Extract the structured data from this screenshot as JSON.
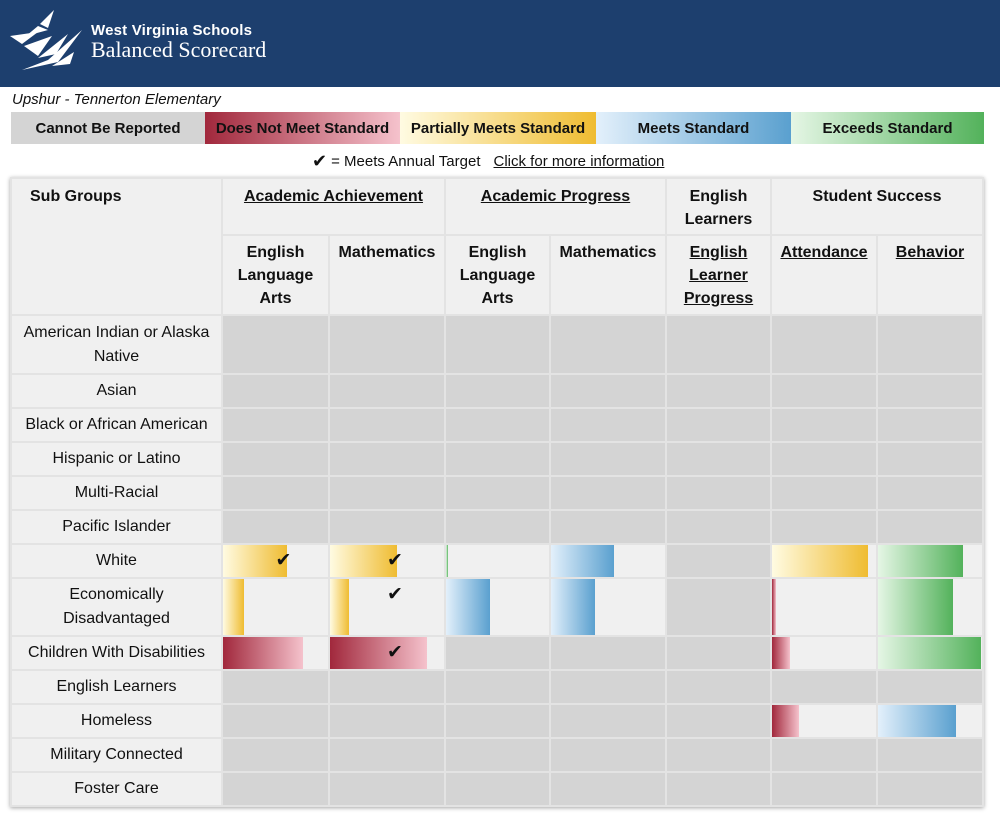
{
  "brand": {
    "line1": "West Virginia Schools",
    "line2": "Balanced Scorecard"
  },
  "school": "Upshur - Tennerton Elementary",
  "legend": [
    {
      "key": "nr",
      "label": "Cannot Be Reported"
    },
    {
      "key": "dn",
      "label": "Does Not Meet Standard"
    },
    {
      "key": "pm",
      "label": "Partially Meets Standard"
    },
    {
      "key": "ms",
      "label": "Meets Standard"
    },
    {
      "key": "es",
      "label": "Exceeds Standard"
    }
  ],
  "target": {
    "check": "✔",
    "label": "= Meets Annual Target",
    "link": "Click for more information"
  },
  "colors": {
    "header": "#1d3f6e",
    "not_reported": "#d4d4d4",
    "does_not_meet": "#a1283c",
    "partially_meets": "#efbc31",
    "meets": "#5aa0cf",
    "exceeds": "#53b25b"
  },
  "table": {
    "subgroups_header": "Sub Groups",
    "groups": [
      {
        "label": "Academic Achievement",
        "link": true
      },
      {
        "label": "Academic Progress",
        "link": true
      },
      {
        "label": "English Learners",
        "link": false
      },
      {
        "label": "Student Success",
        "link": false
      }
    ],
    "columns": [
      {
        "label": "English Language Arts",
        "link": false
      },
      {
        "label": "Mathematics",
        "link": false
      },
      {
        "label": "English Language Arts",
        "link": false
      },
      {
        "label": "Mathematics",
        "link": false
      },
      {
        "label": "English Learner Progress",
        "link": true
      },
      {
        "label": "Attendance",
        "link": true
      },
      {
        "label": "Behavior",
        "link": true
      }
    ],
    "rows": [
      {
        "label": "American Indian or Alaska Native",
        "cells": [
          null,
          null,
          null,
          null,
          null,
          null,
          null
        ]
      },
      {
        "label": "Asian",
        "cells": [
          null,
          null,
          null,
          null,
          null,
          null,
          null
        ]
      },
      {
        "label": "Black or African American",
        "cells": [
          null,
          null,
          null,
          null,
          null,
          null,
          null
        ]
      },
      {
        "label": "Hispanic or Latino",
        "cells": [
          null,
          null,
          null,
          null,
          null,
          null,
          null
        ]
      },
      {
        "label": "Multi-Racial",
        "cells": [
          null,
          null,
          null,
          null,
          null,
          null,
          null
        ]
      },
      {
        "label": "Pacific Islander",
        "cells": [
          null,
          null,
          null,
          null,
          null,
          null,
          null
        ]
      },
      {
        "label": "White",
        "cells": [
          {
            "status": "pm",
            "level": 0.61,
            "target": true
          },
          {
            "status": "pm",
            "level": 0.59,
            "target": true
          },
          {
            "status": "es",
            "level": 0.02,
            "target": false
          },
          {
            "status": "ms",
            "level": 0.55,
            "target": false
          },
          null,
          {
            "status": "pm",
            "level": 0.92,
            "target": false
          },
          {
            "status": "es",
            "level": 0.82,
            "target": false
          }
        ]
      },
      {
        "label": "Economically Disadvantaged",
        "cells": [
          {
            "status": "pm",
            "level": 0.2,
            "target": false
          },
          {
            "status": "pm",
            "level": 0.17,
            "target": true
          },
          {
            "status": "ms",
            "level": 0.43,
            "target": false
          },
          {
            "status": "ms",
            "level": 0.39,
            "target": false
          },
          null,
          {
            "status": "dn",
            "level": 0.04,
            "target": false
          },
          {
            "status": "es",
            "level": 0.72,
            "target": false
          }
        ]
      },
      {
        "label": "Children With Disabilities",
        "cells": [
          {
            "status": "dn",
            "level": 0.76,
            "target": false
          },
          {
            "status": "dn",
            "level": 0.85,
            "target": true
          },
          null,
          null,
          null,
          {
            "status": "dn",
            "level": 0.17,
            "target": false
          },
          {
            "status": "es",
            "level": 0.99,
            "target": false
          }
        ]
      },
      {
        "label": "English Learners",
        "cells": [
          null,
          null,
          null,
          null,
          null,
          null,
          null
        ]
      },
      {
        "label": "Homeless",
        "cells": [
          null,
          null,
          null,
          null,
          null,
          {
            "status": "dn",
            "level": 0.26,
            "target": false
          },
          {
            "status": "ms",
            "level": 0.75,
            "target": false
          }
        ]
      },
      {
        "label": "Military Connected",
        "cells": [
          null,
          null,
          null,
          null,
          null,
          null,
          null
        ]
      },
      {
        "label": "Foster Care",
        "cells": [
          null,
          null,
          null,
          null,
          null,
          null,
          null
        ]
      }
    ]
  }
}
